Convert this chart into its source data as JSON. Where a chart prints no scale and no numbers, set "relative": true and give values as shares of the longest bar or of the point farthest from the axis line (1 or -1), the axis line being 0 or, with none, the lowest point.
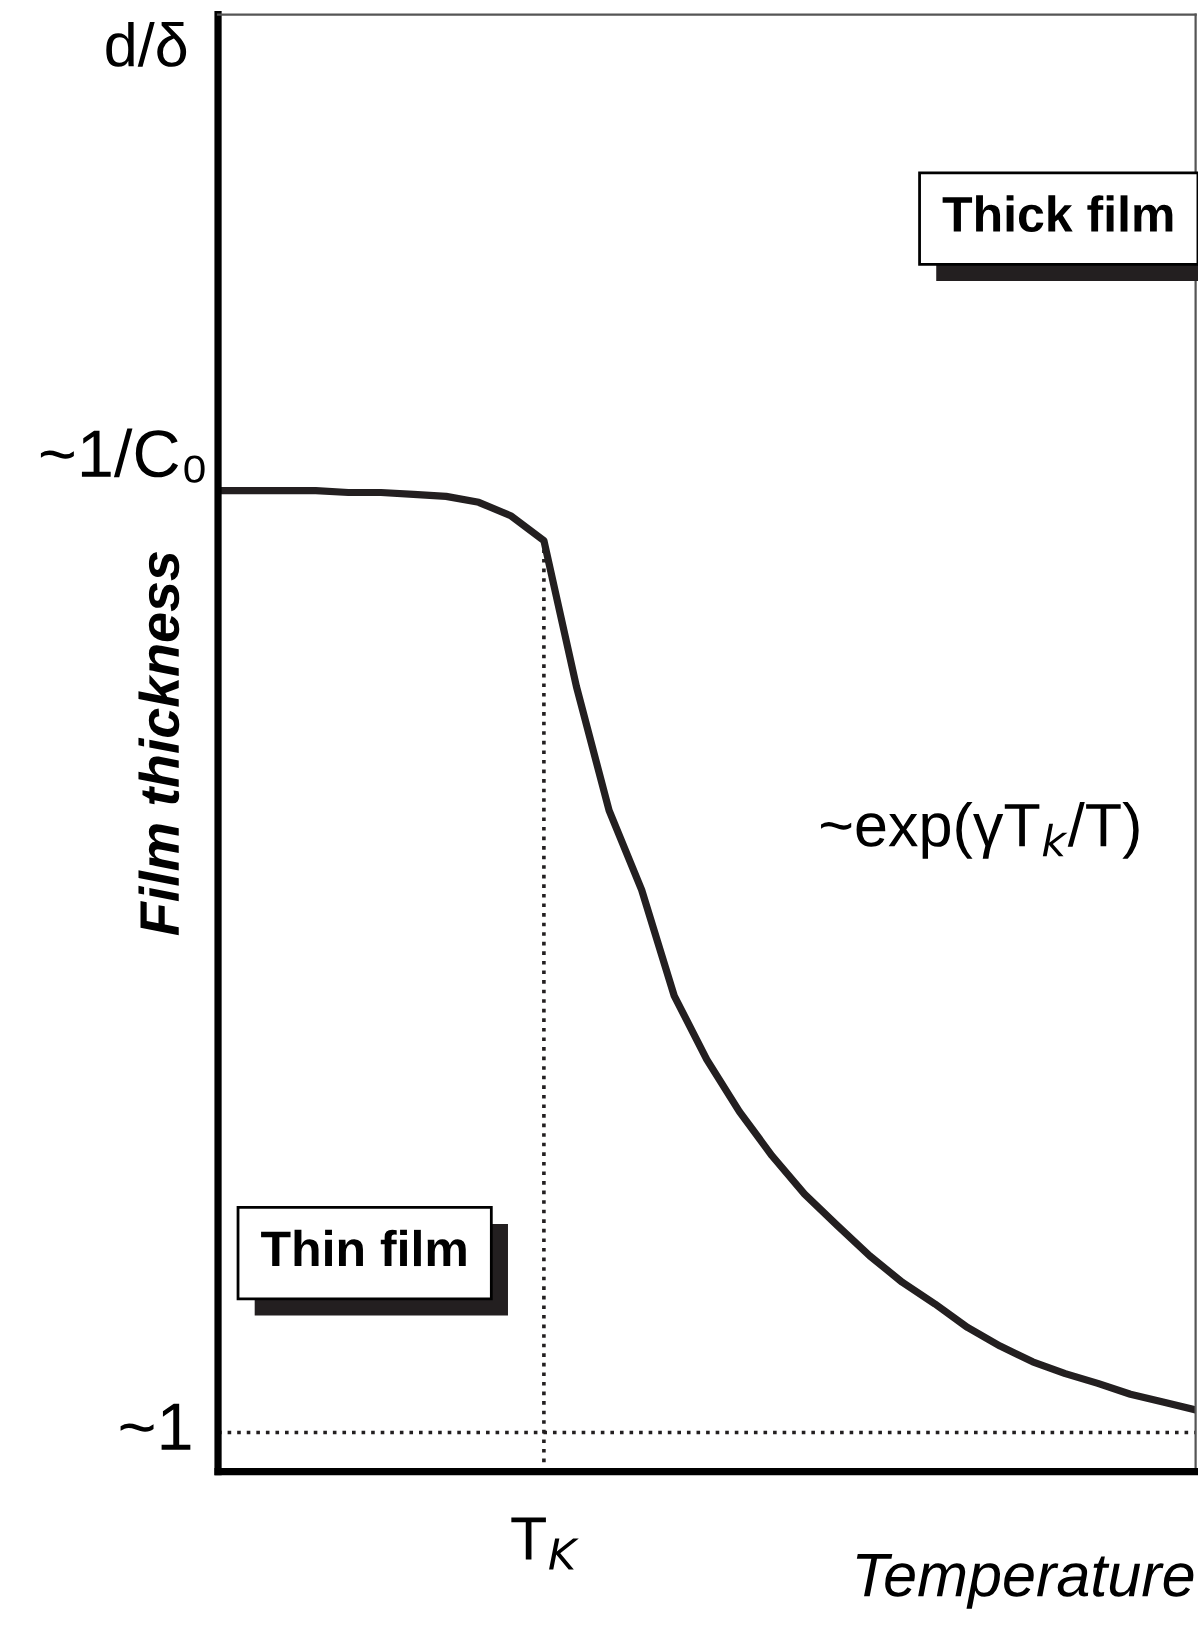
{
  "chart_data": {
    "type": "line",
    "relative": true,
    "xlabel": "Temperature",
    "ylabel": "Film thickness",
    "categories": [
      null,
      null,
      null,
      null,
      null,
      null,
      null,
      null,
      null,
      null,
      null,
      null,
      null,
      null,
      null,
      null,
      null,
      null,
      null,
      null,
      null,
      null,
      null,
      null,
      null,
      null,
      null,
      null,
      null,
      null,
      null
    ],
    "series": [
      {
        "color": "#231f20",
        "values": [
          1.0,
          1.0,
          1.0,
          1.0,
          0.998,
          0.998,
          0.996,
          0.994,
          0.988,
          0.974,
          0.949,
          0.8,
          0.674,
          0.593,
          0.485,
          0.42,
          0.367,
          0.322,
          0.283,
          0.251,
          0.22,
          0.193,
          0.171,
          0.147,
          0.128,
          0.112,
          0.1,
          0.09,
          0.079,
          0.071,
          0.063
        ]
      }
    ],
    "ref_lines": [
      {
        "axis": "y",
        "value": 0.04,
        "line_style": "dotted"
      }
    ],
    "annotations": [
      "d/δ",
      "Thick film",
      "Thin film",
      "~exp(γT$_{k}$/T)",
      "~1",
      "~1/C₀",
      "T$_{K}$"
    ],
    "line_style": "solid"
  }
}
